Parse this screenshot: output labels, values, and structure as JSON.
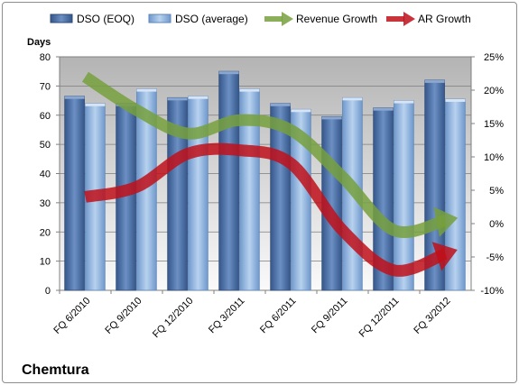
{
  "chart_data": {
    "type": "bar",
    "title": "",
    "company_label": "Chemtura",
    "ylabel_left": "Days",
    "ylabel_right": "",
    "categories": [
      "FQ 6/2010",
      "FQ 9/2010",
      "FQ 12/2010",
      "FQ 3/2011",
      "FQ 6/2011",
      "FQ 9/2011",
      "FQ 12/2011",
      "FQ 3/2012"
    ],
    "ylim_left": [
      0,
      80
    ],
    "ylim_right": [
      -10,
      25
    ],
    "yticks_left": [
      "0",
      "10",
      "20",
      "30",
      "40",
      "50",
      "60",
      "70",
      "80"
    ],
    "yticks_right": [
      "-10%",
      "-5%",
      "0%",
      "5%",
      "10%",
      "15%",
      "20%",
      "25%"
    ],
    "legend_position": "top",
    "grid": true,
    "series": [
      {
        "name": "DSO (EOQ)",
        "kind": "bar",
        "axis": "left",
        "color": "#4a6fa5",
        "values": [
          66.5,
          64,
          66,
          75,
          64,
          59.5,
          62.5,
          72
        ]
      },
      {
        "name": "DSO (average)",
        "kind": "bar",
        "axis": "left",
        "color": "#8db3e2",
        "values": [
          64,
          69,
          66.5,
          69,
          62,
          66,
          65,
          65.5
        ]
      },
      {
        "name": "Revenue Growth",
        "kind": "arrow-line",
        "axis": "right",
        "color": "#77a03d",
        "values": [
          22,
          17,
          13.5,
          15.5,
          14,
          7,
          -1,
          0.5
        ]
      },
      {
        "name": "AR Growth",
        "kind": "arrow-line",
        "axis": "right",
        "color": "#c0111a",
        "values": [
          4,
          5.5,
          10.5,
          11,
          9,
          -1,
          -7,
          -4.5
        ]
      }
    ]
  }
}
